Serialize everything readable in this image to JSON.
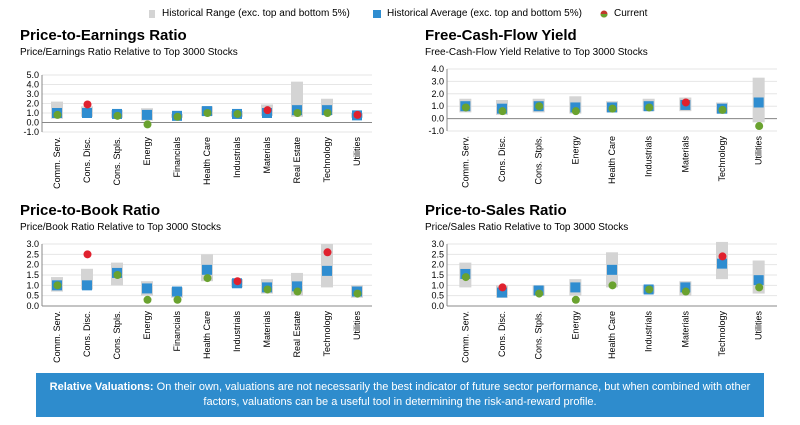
{
  "legend": {
    "range_label": "Historical Range (exc. top and bottom 5%)",
    "average_label": "Historical Average (exc. top and bottom 5%)",
    "current_label": "Current"
  },
  "colors": {
    "range": "#d4d4d4",
    "average": "#2f8dd0",
    "current_above": "#e0212e",
    "current_below": "#6aa22f",
    "banner": "#2e8ccd"
  },
  "banner": {
    "title": "Relative Valuations:",
    "text": "On their own, valuations are not necessarily the best indicator of future sector performance, but when combined with other factors, valuations can be a useful tool in determining the risk-and-reward profile."
  },
  "chart_data": [
    {
      "type": "scatter",
      "title": "Price-to-Earnings Ratio",
      "subtitle": "Price/Earnings Ratio Relative to Top 3000 Stocks",
      "ylim": [
        -1.0,
        5.0
      ],
      "yticks": [
        "5.0",
        "4.0",
        "3.0",
        "2.0",
        "1.0",
        "0.0",
        "-1.0"
      ],
      "ytick_values": [
        5,
        4,
        3,
        2,
        1,
        0,
        -1
      ],
      "categories": [
        "Comm. Serv.",
        "Cons. Disc.",
        "Cons. Stpls.",
        "Energy",
        "Financials",
        "Health Care",
        "Industrials",
        "Materials",
        "Real Estate",
        "Technology",
        "Utilities"
      ],
      "range_low": [
        0.4,
        0.6,
        0.5,
        0.2,
        0.5,
        0.7,
        0.6,
        0.7,
        0.6,
        0.8,
        0.5
      ],
      "range_high": [
        2.2,
        1.7,
        1.3,
        1.5,
        0.9,
        1.7,
        1.2,
        1.9,
        4.3,
        2.5,
        1.0
      ],
      "average": [
        1.0,
        1.0,
        0.9,
        0.8,
        0.7,
        1.2,
        0.9,
        1.0,
        1.3,
        1.3,
        0.75
      ],
      "current": [
        0.8,
        1.9,
        0.7,
        -0.2,
        0.6,
        1.0,
        0.9,
        1.3,
        1.0,
        1.0,
        0.8
      ]
    },
    {
      "type": "scatter",
      "title": "Free-Cash-Flow Yield",
      "subtitle": "Free-Cash-Flow Yield Relative to Top 3000 Stocks",
      "ylim": [
        -1.0,
        4.0
      ],
      "yticks": [
        "4.0",
        "3.0",
        "2.0",
        "1.0",
        "0.0",
        "-1.0"
      ],
      "ytick_values": [
        4,
        3,
        2,
        1,
        0,
        -1
      ],
      "categories": [
        "Comm. Serv.",
        "Cons. Disc.",
        "Cons. Stpls.",
        "Energy",
        "Health Care",
        "Industrials",
        "Materials",
        "Technology",
        "Utilities"
      ],
      "range_low": [
        0.5,
        0.3,
        0.5,
        0.4,
        0.5,
        0.6,
        0.6,
        0.4,
        -0.3
      ],
      "range_high": [
        1.6,
        1.5,
        1.6,
        1.8,
        1.4,
        1.6,
        1.7,
        1.3,
        3.3
      ],
      "average": [
        1.0,
        0.8,
        1.0,
        0.9,
        0.9,
        1.0,
        1.1,
        0.8,
        1.3
      ],
      "current": [
        0.9,
        0.6,
        1.0,
        0.6,
        0.8,
        0.9,
        1.3,
        0.7,
        -0.6
      ]
    },
    {
      "type": "scatter",
      "title": "Price-to-Book Ratio",
      "subtitle": "Price/Book Ratio Relative to Top 3000 Stocks",
      "ylim": [
        0.0,
        3.0
      ],
      "yticks": [
        "3.0",
        "2.5",
        "2.0",
        "1.5",
        "1.0",
        "0.5",
        "0.0"
      ],
      "ytick_values": [
        3,
        2.5,
        2,
        1.5,
        1,
        0.5,
        0
      ],
      "categories": [
        "Comm. Serv.",
        "Cons. Disc.",
        "Cons. Stpls.",
        "Energy",
        "Financials",
        "Health Care",
        "Industrials",
        "Materials",
        "Real Estate",
        "Technology",
        "Utilities"
      ],
      "range_low": [
        0.7,
        0.8,
        1.0,
        0.5,
        0.4,
        1.2,
        0.9,
        0.6,
        0.5,
        0.9,
        0.4
      ],
      "range_high": [
        1.4,
        1.8,
        2.1,
        1.2,
        0.9,
        2.5,
        1.3,
        1.3,
        1.6,
        3.0,
        1.0
      ],
      "average": [
        1.0,
        1.0,
        1.6,
        0.85,
        0.7,
        1.75,
        1.1,
        0.9,
        0.95,
        1.7,
        0.7
      ],
      "current": [
        1.0,
        2.5,
        1.5,
        0.3,
        0.3,
        1.35,
        1.2,
        0.8,
        0.7,
        2.6,
        0.6
      ]
    },
    {
      "type": "scatter",
      "title": "Price-to-Sales Ratio",
      "subtitle": "Price/Sales Ratio Relative to Top 3000 Stocks",
      "ylim": [
        0.0,
        3.0
      ],
      "yticks": [
        "3.0",
        "2.5",
        "2.0",
        "1.5",
        "1.0",
        "0.5",
        "0.0"
      ],
      "ytick_values": [
        3,
        2.5,
        2,
        1.5,
        1,
        0.5,
        0
      ],
      "categories": [
        "Comm. Serv.",
        "Cons. Disc.",
        "Cons. Stpls.",
        "Energy",
        "Health Care",
        "Industrials",
        "Materials",
        "Technology",
        "Utilities"
      ],
      "range_low": [
        0.9,
        0.4,
        0.5,
        0.5,
        0.9,
        0.6,
        0.5,
        1.3,
        0.6
      ],
      "range_high": [
        2.1,
        1.0,
        1.0,
        1.3,
        2.6,
        1.0,
        1.2,
        3.1,
        2.2
      ],
      "average": [
        1.55,
        0.65,
        0.75,
        0.9,
        1.75,
        0.8,
        0.9,
        2.05,
        1.25
      ],
      "current": [
        1.4,
        0.9,
        0.6,
        0.3,
        1.0,
        0.8,
        0.7,
        2.4,
        0.9
      ]
    }
  ]
}
